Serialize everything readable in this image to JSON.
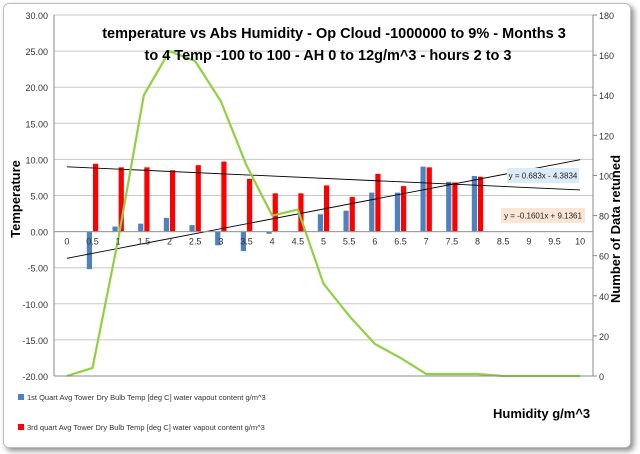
{
  "chart_data": {
    "type": "bar+line",
    "title_line1": "temperature vs Abs Humidity  - Op Cloud -1000000 to 9% - Months 3",
    "title_line2": "to 4 Temp -100 to 100 - AH 0 to 12g/m^3 - hours 2 to 3",
    "ylabel": "Temperature",
    "y2label": "Number of Data retuned",
    "xlabel": "Humidity  g/m^3",
    "ylim": [
      -20,
      30
    ],
    "y_ticks": [
      "30.00",
      "25.00",
      "20.00",
      "15.00",
      "10.00",
      "5.00",
      "0.00",
      "-5.00",
      "-10.00",
      "-15.00",
      "-20.00"
    ],
    "y2lim": [
      0,
      180
    ],
    "y2_ticks": [
      "180",
      "160",
      "140",
      "120",
      "100",
      "80",
      "60",
      "40",
      "20",
      "0"
    ],
    "categories": [
      "0",
      "0.5",
      "1",
      "1.5",
      "2",
      "2.5",
      "3",
      "3.5",
      "4",
      "4.5",
      "5",
      "5.5",
      "6",
      "6.5",
      "7",
      "7.5",
      "8",
      "8.5",
      "9",
      "9.5",
      "10"
    ],
    "series": [
      {
        "name": "1st Quart Avg Tower Dry Bulb Temp [deg C] water vapout content g/m^3",
        "color": "#4f81bd",
        "values": [
          null,
          -5.2,
          0.7,
          1.1,
          1.9,
          0.9,
          -1.9,
          -2.7,
          -0.3,
          0.0,
          2.4,
          2.9,
          5.4,
          5.4,
          9.0,
          6.9,
          7.7,
          null,
          null,
          null,
          null
        ]
      },
      {
        "name": "3rd quart Avg Tower Dry Bulb Temp [deg C] water vapout content g/m^3",
        "color": "#ff0000",
        "values": [
          null,
          9.4,
          8.9,
          8.9,
          8.5,
          9.2,
          9.7,
          7.3,
          5.3,
          5.3,
          6.4,
          4.8,
          8.0,
          6.3,
          8.9,
          6.8,
          7.6,
          null,
          null,
          null,
          null
        ]
      }
    ],
    "count_series": {
      "name": "Number of Data retuned",
      "color": "#8fd13f",
      "values": [
        0,
        4,
        68,
        140,
        162,
        157,
        137,
        105,
        80,
        83,
        46,
        30,
        16,
        9,
        1,
        1,
        1,
        0,
        0,
        0,
        0
      ]
    },
    "trendlines": [
      {
        "label": "y = 0.683x - 4.3834",
        "slope": 0.683,
        "intercept": -4.3834,
        "color": "#000000"
      },
      {
        "label": "y = -0.1601x + 9.1361",
        "slope": -0.1601,
        "intercept": 9.1361,
        "color": "#000000"
      }
    ]
  }
}
